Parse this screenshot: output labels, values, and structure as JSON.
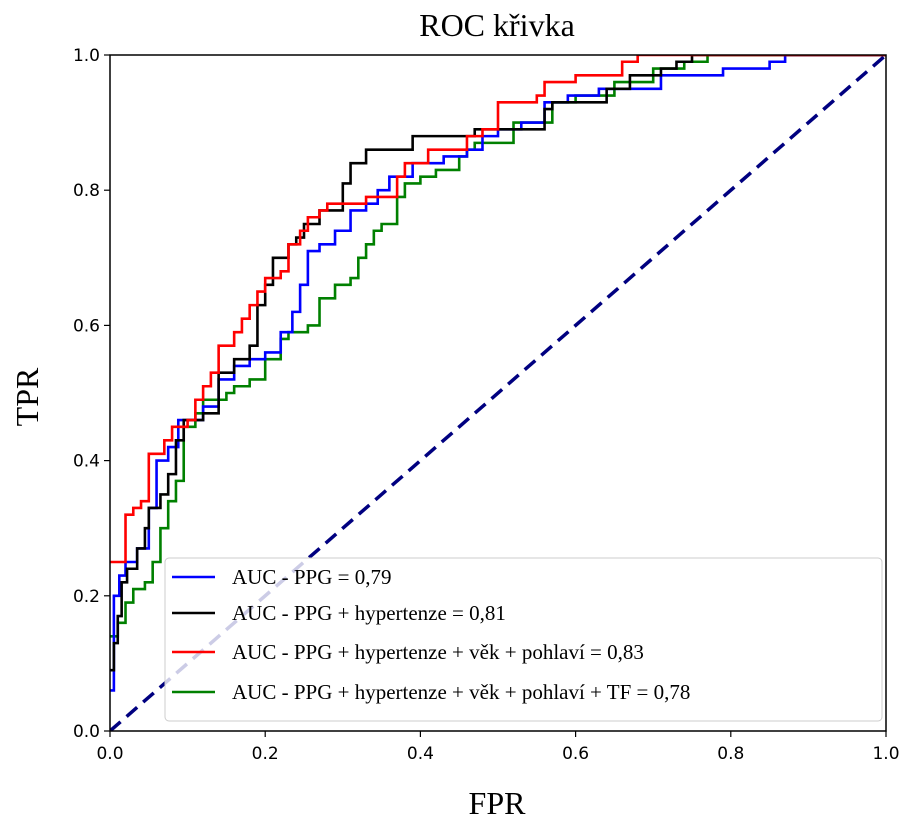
{
  "chart_data": {
    "type": "line",
    "title": "ROC křivka",
    "xlabel": "FPR",
    "ylabel": "TPR",
    "xlim": [
      0.0,
      1.0
    ],
    "ylim": [
      0.0,
      1.0
    ],
    "x_ticks": [
      "0.0",
      "0.2",
      "0.4",
      "0.6",
      "0.8",
      "1.0"
    ],
    "y_ticks": [
      "0.0",
      "0.2",
      "0.4",
      "0.6",
      "0.8",
      "1.0"
    ],
    "grid": false,
    "legend_position": "lower-right",
    "series": [
      {
        "name": "AUC - PPG = 0,79",
        "color": "#0000ff",
        "points": [
          [
            0,
            0.06
          ],
          [
            0.005,
            0.06
          ],
          [
            0.005,
            0.2
          ],
          [
            0.012,
            0.2
          ],
          [
            0.012,
            0.23
          ],
          [
            0.02,
            0.23
          ],
          [
            0.02,
            0.25
          ],
          [
            0.035,
            0.25
          ],
          [
            0.035,
            0.27
          ],
          [
            0.05,
            0.27
          ],
          [
            0.05,
            0.33
          ],
          [
            0.06,
            0.33
          ],
          [
            0.06,
            0.4
          ],
          [
            0.075,
            0.4
          ],
          [
            0.075,
            0.42
          ],
          [
            0.088,
            0.42
          ],
          [
            0.088,
            0.46
          ],
          [
            0.12,
            0.46
          ],
          [
            0.12,
            0.48
          ],
          [
            0.14,
            0.48
          ],
          [
            0.14,
            0.52
          ],
          [
            0.16,
            0.52
          ],
          [
            0.16,
            0.54
          ],
          [
            0.18,
            0.54
          ],
          [
            0.18,
            0.55
          ],
          [
            0.2,
            0.55
          ],
          [
            0.2,
            0.56
          ],
          [
            0.22,
            0.56
          ],
          [
            0.22,
            0.59
          ],
          [
            0.235,
            0.59
          ],
          [
            0.235,
            0.62
          ],
          [
            0.245,
            0.62
          ],
          [
            0.245,
            0.66
          ],
          [
            0.255,
            0.66
          ],
          [
            0.255,
            0.71
          ],
          [
            0.27,
            0.71
          ],
          [
            0.27,
            0.72
          ],
          [
            0.29,
            0.72
          ],
          [
            0.29,
            0.74
          ],
          [
            0.31,
            0.74
          ],
          [
            0.31,
            0.77
          ],
          [
            0.33,
            0.77
          ],
          [
            0.33,
            0.78
          ],
          [
            0.345,
            0.78
          ],
          [
            0.345,
            0.8
          ],
          [
            0.36,
            0.8
          ],
          [
            0.36,
            0.82
          ],
          [
            0.39,
            0.82
          ],
          [
            0.39,
            0.84
          ],
          [
            0.43,
            0.84
          ],
          [
            0.43,
            0.85
          ],
          [
            0.46,
            0.85
          ],
          [
            0.46,
            0.86
          ],
          [
            0.48,
            0.86
          ],
          [
            0.48,
            0.88
          ],
          [
            0.5,
            0.88
          ],
          [
            0.5,
            0.89
          ],
          [
            0.53,
            0.89
          ],
          [
            0.53,
            0.9
          ],
          [
            0.56,
            0.9
          ],
          [
            0.56,
            0.93
          ],
          [
            0.59,
            0.93
          ],
          [
            0.59,
            0.94
          ],
          [
            0.63,
            0.94
          ],
          [
            0.63,
            0.95
          ],
          [
            0.71,
            0.95
          ],
          [
            0.71,
            0.97
          ],
          [
            0.79,
            0.97
          ],
          [
            0.79,
            0.98
          ],
          [
            0.85,
            0.98
          ],
          [
            0.85,
            0.99
          ],
          [
            0.87,
            0.99
          ],
          [
            0.87,
            1.0
          ],
          [
            1.0,
            1.0
          ]
        ]
      },
      {
        "name": "AUC - PPG + hypertenze = 0,81",
        "color": "#000000",
        "points": [
          [
            0,
            0.09
          ],
          [
            0.005,
            0.09
          ],
          [
            0.005,
            0.13
          ],
          [
            0.01,
            0.13
          ],
          [
            0.01,
            0.17
          ],
          [
            0.015,
            0.17
          ],
          [
            0.015,
            0.22
          ],
          [
            0.022,
            0.22
          ],
          [
            0.022,
            0.24
          ],
          [
            0.035,
            0.24
          ],
          [
            0.035,
            0.27
          ],
          [
            0.045,
            0.27
          ],
          [
            0.045,
            0.3
          ],
          [
            0.05,
            0.3
          ],
          [
            0.05,
            0.33
          ],
          [
            0.065,
            0.33
          ],
          [
            0.065,
            0.35
          ],
          [
            0.075,
            0.35
          ],
          [
            0.075,
            0.38
          ],
          [
            0.085,
            0.38
          ],
          [
            0.085,
            0.43
          ],
          [
            0.095,
            0.43
          ],
          [
            0.095,
            0.46
          ],
          [
            0.12,
            0.46
          ],
          [
            0.12,
            0.47
          ],
          [
            0.14,
            0.47
          ],
          [
            0.14,
            0.53
          ],
          [
            0.16,
            0.53
          ],
          [
            0.16,
            0.55
          ],
          [
            0.18,
            0.55
          ],
          [
            0.18,
            0.57
          ],
          [
            0.19,
            0.57
          ],
          [
            0.19,
            0.63
          ],
          [
            0.2,
            0.63
          ],
          [
            0.2,
            0.66
          ],
          [
            0.21,
            0.66
          ],
          [
            0.21,
            0.7
          ],
          [
            0.23,
            0.7
          ],
          [
            0.23,
            0.72
          ],
          [
            0.24,
            0.72
          ],
          [
            0.24,
            0.73
          ],
          [
            0.25,
            0.73
          ],
          [
            0.25,
            0.75
          ],
          [
            0.27,
            0.75
          ],
          [
            0.27,
            0.77
          ],
          [
            0.3,
            0.77
          ],
          [
            0.3,
            0.81
          ],
          [
            0.31,
            0.81
          ],
          [
            0.31,
            0.84
          ],
          [
            0.33,
            0.84
          ],
          [
            0.33,
            0.86
          ],
          [
            0.39,
            0.86
          ],
          [
            0.39,
            0.88
          ],
          [
            0.47,
            0.88
          ],
          [
            0.47,
            0.89
          ],
          [
            0.56,
            0.89
          ],
          [
            0.56,
            0.92
          ],
          [
            0.57,
            0.92
          ],
          [
            0.57,
            0.93
          ],
          [
            0.64,
            0.93
          ],
          [
            0.64,
            0.95
          ],
          [
            0.67,
            0.95
          ],
          [
            0.67,
            0.97
          ],
          [
            0.71,
            0.97
          ],
          [
            0.71,
            0.98
          ],
          [
            0.73,
            0.98
          ],
          [
            0.73,
            0.99
          ],
          [
            0.75,
            0.99
          ],
          [
            0.75,
            1.0
          ],
          [
            1.0,
            1.0
          ]
        ]
      },
      {
        "name": "AUC - PPG + hypertenze + věk + pohlaví = 0,83",
        "color": "#ff0000",
        "points": [
          [
            0,
            0.25
          ],
          [
            0.02,
            0.25
          ],
          [
            0.02,
            0.32
          ],
          [
            0.03,
            0.32
          ],
          [
            0.03,
            0.33
          ],
          [
            0.04,
            0.33
          ],
          [
            0.04,
            0.34
          ],
          [
            0.05,
            0.34
          ],
          [
            0.05,
            0.41
          ],
          [
            0.07,
            0.41
          ],
          [
            0.07,
            0.43
          ],
          [
            0.08,
            0.43
          ],
          [
            0.08,
            0.45
          ],
          [
            0.1,
            0.45
          ],
          [
            0.1,
            0.46
          ],
          [
            0.11,
            0.46
          ],
          [
            0.11,
            0.49
          ],
          [
            0.12,
            0.49
          ],
          [
            0.12,
            0.51
          ],
          [
            0.13,
            0.51
          ],
          [
            0.13,
            0.53
          ],
          [
            0.14,
            0.53
          ],
          [
            0.14,
            0.57
          ],
          [
            0.16,
            0.57
          ],
          [
            0.16,
            0.59
          ],
          [
            0.17,
            0.59
          ],
          [
            0.17,
            0.61
          ],
          [
            0.18,
            0.61
          ],
          [
            0.18,
            0.63
          ],
          [
            0.19,
            0.63
          ],
          [
            0.19,
            0.65
          ],
          [
            0.2,
            0.65
          ],
          [
            0.2,
            0.67
          ],
          [
            0.22,
            0.67
          ],
          [
            0.22,
            0.68
          ],
          [
            0.23,
            0.68
          ],
          [
            0.23,
            0.72
          ],
          [
            0.245,
            0.72
          ],
          [
            0.245,
            0.74
          ],
          [
            0.255,
            0.74
          ],
          [
            0.255,
            0.76
          ],
          [
            0.27,
            0.76
          ],
          [
            0.27,
            0.77
          ],
          [
            0.28,
            0.77
          ],
          [
            0.28,
            0.78
          ],
          [
            0.33,
            0.78
          ],
          [
            0.33,
            0.79
          ],
          [
            0.37,
            0.79
          ],
          [
            0.37,
            0.82
          ],
          [
            0.38,
            0.82
          ],
          [
            0.38,
            0.84
          ],
          [
            0.41,
            0.84
          ],
          [
            0.41,
            0.86
          ],
          [
            0.46,
            0.86
          ],
          [
            0.46,
            0.88
          ],
          [
            0.48,
            0.88
          ],
          [
            0.48,
            0.89
          ],
          [
            0.5,
            0.89
          ],
          [
            0.5,
            0.93
          ],
          [
            0.55,
            0.93
          ],
          [
            0.55,
            0.94
          ],
          [
            0.56,
            0.94
          ],
          [
            0.56,
            0.96
          ],
          [
            0.6,
            0.96
          ],
          [
            0.6,
            0.97
          ],
          [
            0.66,
            0.97
          ],
          [
            0.66,
            0.99
          ],
          [
            0.68,
            0.99
          ],
          [
            0.68,
            1.0
          ],
          [
            1.0,
            1.0
          ]
        ]
      },
      {
        "name": "AUC - PPG + hypertenze + věk + pohlaví + TF = 0,78",
        "color": "#008000",
        "points": [
          [
            0,
            0.14
          ],
          [
            0.01,
            0.14
          ],
          [
            0.01,
            0.16
          ],
          [
            0.02,
            0.16
          ],
          [
            0.02,
            0.19
          ],
          [
            0.03,
            0.19
          ],
          [
            0.03,
            0.21
          ],
          [
            0.045,
            0.21
          ],
          [
            0.045,
            0.22
          ],
          [
            0.055,
            0.22
          ],
          [
            0.055,
            0.25
          ],
          [
            0.065,
            0.25
          ],
          [
            0.065,
            0.3
          ],
          [
            0.075,
            0.3
          ],
          [
            0.075,
            0.34
          ],
          [
            0.085,
            0.34
          ],
          [
            0.085,
            0.37
          ],
          [
            0.095,
            0.37
          ],
          [
            0.095,
            0.45
          ],
          [
            0.11,
            0.45
          ],
          [
            0.11,
            0.47
          ],
          [
            0.12,
            0.47
          ],
          [
            0.12,
            0.49
          ],
          [
            0.15,
            0.49
          ],
          [
            0.15,
            0.5
          ],
          [
            0.16,
            0.5
          ],
          [
            0.16,
            0.51
          ],
          [
            0.18,
            0.51
          ],
          [
            0.18,
            0.52
          ],
          [
            0.2,
            0.52
          ],
          [
            0.2,
            0.55
          ],
          [
            0.22,
            0.55
          ],
          [
            0.22,
            0.58
          ],
          [
            0.23,
            0.58
          ],
          [
            0.23,
            0.59
          ],
          [
            0.255,
            0.59
          ],
          [
            0.255,
            0.6
          ],
          [
            0.27,
            0.6
          ],
          [
            0.27,
            0.64
          ],
          [
            0.29,
            0.64
          ],
          [
            0.29,
            0.66
          ],
          [
            0.31,
            0.66
          ],
          [
            0.31,
            0.67
          ],
          [
            0.32,
            0.67
          ],
          [
            0.32,
            0.7
          ],
          [
            0.33,
            0.7
          ],
          [
            0.33,
            0.72
          ],
          [
            0.34,
            0.72
          ],
          [
            0.34,
            0.74
          ],
          [
            0.35,
            0.74
          ],
          [
            0.35,
            0.75
          ],
          [
            0.37,
            0.75
          ],
          [
            0.37,
            0.79
          ],
          [
            0.38,
            0.79
          ],
          [
            0.38,
            0.81
          ],
          [
            0.4,
            0.81
          ],
          [
            0.4,
            0.82
          ],
          [
            0.42,
            0.82
          ],
          [
            0.42,
            0.83
          ],
          [
            0.45,
            0.83
          ],
          [
            0.45,
            0.85
          ],
          [
            0.46,
            0.85
          ],
          [
            0.46,
            0.86
          ],
          [
            0.47,
            0.86
          ],
          [
            0.47,
            0.87
          ],
          [
            0.52,
            0.87
          ],
          [
            0.52,
            0.9
          ],
          [
            0.57,
            0.9
          ],
          [
            0.57,
            0.93
          ],
          [
            0.6,
            0.93
          ],
          [
            0.6,
            0.94
          ],
          [
            0.65,
            0.94
          ],
          [
            0.65,
            0.96
          ],
          [
            0.7,
            0.96
          ],
          [
            0.7,
            0.98
          ],
          [
            0.74,
            0.98
          ],
          [
            0.74,
            0.99
          ],
          [
            0.77,
            0.99
          ],
          [
            0.77,
            1.0
          ],
          [
            1.0,
            1.0
          ]
        ]
      },
      {
        "name": "",
        "color": "#000080",
        "dashed": true,
        "points": [
          [
            0,
            0
          ],
          [
            1,
            1
          ]
        ]
      }
    ]
  }
}
